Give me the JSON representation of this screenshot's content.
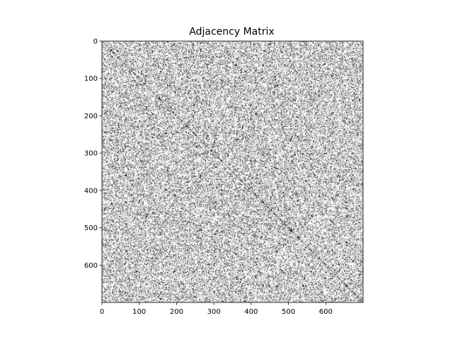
{
  "chart_data": {
    "type": "heatmap",
    "title": "Adjacency Matrix",
    "xlabel": "",
    "ylabel": "",
    "matrix_size": 700,
    "xlim": [
      0,
      700
    ],
    "ylim": [
      700,
      0
    ],
    "x_ticks": [
      0,
      100,
      200,
      300,
      400,
      500,
      600
    ],
    "y_ticks": [
      0,
      100,
      200,
      300,
      400,
      500,
      600
    ],
    "x_tick_labels": [
      "0",
      "100",
      "200",
      "300",
      "400",
      "500",
      "600"
    ],
    "y_tick_labels": [
      "0",
      "100",
      "200",
      "300",
      "400",
      "500",
      "600"
    ],
    "colormap": "binary",
    "edge_color": "#000000",
    "background_color": "#ffffff",
    "approx_density": 0.22,
    "diagonal": "dense band of 1s along the main diagonal",
    "grid": false,
    "legend": "none"
  }
}
